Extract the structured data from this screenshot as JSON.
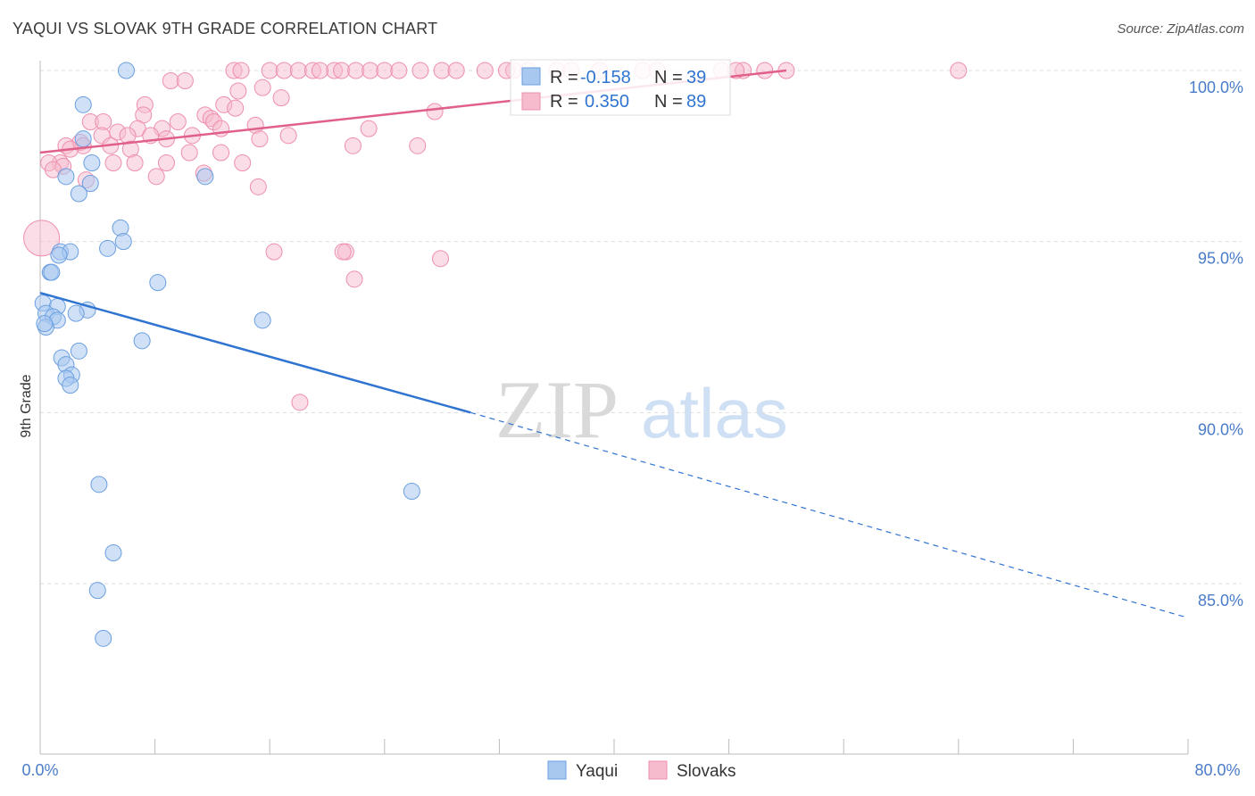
{
  "title": "YAQUI VS SLOVAK 9TH GRADE CORRELATION CHART",
  "source": "Source: ZipAtlas.com",
  "watermark": {
    "zip": "ZIP",
    "atlas": "atlas"
  },
  "colors": {
    "yaqui_fill": "#a9c8f0",
    "yaqui_stroke": "#6a9fe0",
    "yaqui_line": "#2f74d0",
    "slovak_fill": "#f6bccd",
    "slovak_stroke": "#ee8fac",
    "slovak_line": "#e0608a",
    "tick": "#4a7cc9",
    "grid": "#dddddd"
  },
  "chart_data": {
    "type": "scatter",
    "xlabel": "",
    "ylabel": "9th Grade",
    "xlim": [
      0,
      80
    ],
    "ylim": [
      80,
      100.8
    ],
    "x_tick_labels": [
      "0.0%",
      "80.0%"
    ],
    "y_ticks": [
      85,
      90,
      95,
      100
    ],
    "y_tick_labels": [
      "85.0%",
      "90.0%",
      "95.0%",
      "100.0%"
    ],
    "legend": [
      {
        "name": "Yaqui",
        "r_label": "R =",
        "r": "-0.158",
        "n_label": "N =",
        "n": "39"
      },
      {
        "name": "Slovaks",
        "r_label": "R =",
        "r": "0.350",
        "n_label": "N =",
        "n": "89"
      }
    ],
    "series": [
      {
        "name": "Yaqui",
        "trend": {
          "x0": 0,
          "y0": 93.5,
          "x1": 30,
          "y1": 90.0,
          "dash_to_x": 80,
          "dash_to_y": 84.0
        },
        "points": [
          [
            6,
            100
          ],
          [
            3,
            99
          ],
          [
            3,
            98
          ],
          [
            3.6,
            97.3
          ],
          [
            1.8,
            96.9
          ],
          [
            3.5,
            96.7
          ],
          [
            2.7,
            96.4
          ],
          [
            5.6,
            95.4
          ],
          [
            5.8,
            95.0
          ],
          [
            4.7,
            94.8
          ],
          [
            1.4,
            94.7
          ],
          [
            2.1,
            94.7
          ],
          [
            1.3,
            94.6
          ],
          [
            0.7,
            94.1
          ],
          [
            0.8,
            94.1
          ],
          [
            8.2,
            93.8
          ],
          [
            0.2,
            93.2
          ],
          [
            1.2,
            93.1
          ],
          [
            3.3,
            93.0
          ],
          [
            0.4,
            92.9
          ],
          [
            2.5,
            92.9
          ],
          [
            0.9,
            92.8
          ],
          [
            1.2,
            92.7
          ],
          [
            15.5,
            92.7
          ],
          [
            0.4,
            92.5
          ],
          [
            7.1,
            92.1
          ],
          [
            2.7,
            91.8
          ],
          [
            1.5,
            91.6
          ],
          [
            1.8,
            91.4
          ],
          [
            2.2,
            91.1
          ],
          [
            1.8,
            91.0
          ],
          [
            2.1,
            90.8
          ],
          [
            11.5,
            96.9
          ],
          [
            4.1,
            87.9
          ],
          [
            25.9,
            87.7
          ],
          [
            5.1,
            85.9
          ],
          [
            4.0,
            84.8
          ],
          [
            4.4,
            83.4
          ],
          [
            0.3,
            92.6
          ]
        ]
      },
      {
        "name": "Slovaks",
        "trend": {
          "x0": 0,
          "y0": 97.6,
          "x1": 52,
          "y1": 100.0
        },
        "points": [
          [
            13.5,
            100
          ],
          [
            14,
            100
          ],
          [
            16,
            100
          ],
          [
            17,
            100
          ],
          [
            18,
            100
          ],
          [
            19,
            100
          ],
          [
            20.5,
            100
          ],
          [
            21,
            100
          ],
          [
            22,
            100
          ],
          [
            23,
            100
          ],
          [
            24,
            100
          ],
          [
            25,
            100
          ],
          [
            26.5,
            100
          ],
          [
            28,
            100
          ],
          [
            29,
            100
          ],
          [
            31,
            100
          ],
          [
            33,
            100
          ],
          [
            34,
            100
          ],
          [
            36,
            100
          ],
          [
            39,
            100
          ],
          [
            42,
            100
          ],
          [
            47.5,
            100
          ],
          [
            49,
            100
          ],
          [
            50.5,
            100
          ],
          [
            52,
            100
          ],
          [
            64,
            100
          ],
          [
            9.1,
            99.7
          ],
          [
            10.1,
            99.7
          ],
          [
            15.5,
            99.5
          ],
          [
            13.8,
            99.4
          ],
          [
            16.8,
            99.2
          ],
          [
            7.3,
            99.0
          ],
          [
            12.8,
            99.0
          ],
          [
            13.6,
            98.9
          ],
          [
            27.5,
            98.8
          ],
          [
            7.2,
            98.7
          ],
          [
            11.5,
            98.7
          ],
          [
            11.9,
            98.6
          ],
          [
            3.5,
            98.5
          ],
          [
            4.4,
            98.5
          ],
          [
            9.6,
            98.5
          ],
          [
            12.1,
            98.5
          ],
          [
            15,
            98.4
          ],
          [
            6.8,
            98.3
          ],
          [
            8.5,
            98.3
          ],
          [
            12.6,
            98.3
          ],
          [
            22.9,
            98.3
          ],
          [
            5.4,
            98.2
          ],
          [
            4.3,
            98.1
          ],
          [
            6.1,
            98.1
          ],
          [
            7.7,
            98.1
          ],
          [
            10.6,
            98.1
          ],
          [
            17.3,
            98.1
          ],
          [
            8.8,
            98.0
          ],
          [
            15.3,
            98.0
          ],
          [
            2.8,
            97.9
          ],
          [
            1.8,
            97.8
          ],
          [
            3.0,
            97.8
          ],
          [
            4.9,
            97.8
          ],
          [
            2.1,
            97.7
          ],
          [
            6.3,
            97.7
          ],
          [
            10.4,
            97.6
          ],
          [
            12.6,
            97.6
          ],
          [
            21.8,
            97.8
          ],
          [
            26.3,
            97.8
          ],
          [
            1.4,
            97.3
          ],
          [
            5.1,
            97.3
          ],
          [
            6.6,
            97.3
          ],
          [
            8.8,
            97.3
          ],
          [
            14.1,
            97.3
          ],
          [
            0.6,
            97.3
          ],
          [
            1.6,
            97.2
          ],
          [
            0.9,
            97.1
          ],
          [
            11.4,
            97.0
          ],
          [
            8.1,
            96.9
          ],
          [
            3.2,
            96.8
          ],
          [
            15.2,
            96.6
          ],
          [
            16.3,
            94.7
          ],
          [
            21.3,
            94.7
          ],
          [
            21.1,
            94.7
          ],
          [
            27.9,
            94.5
          ],
          [
            21.9,
            93.9
          ],
          [
            18.1,
            90.3
          ],
          [
            0.1,
            95.1
          ],
          [
            19.5,
            100
          ],
          [
            32.5,
            100
          ],
          [
            37,
            100
          ],
          [
            43,
            100
          ],
          [
            48.5,
            100
          ]
        ]
      }
    ]
  }
}
